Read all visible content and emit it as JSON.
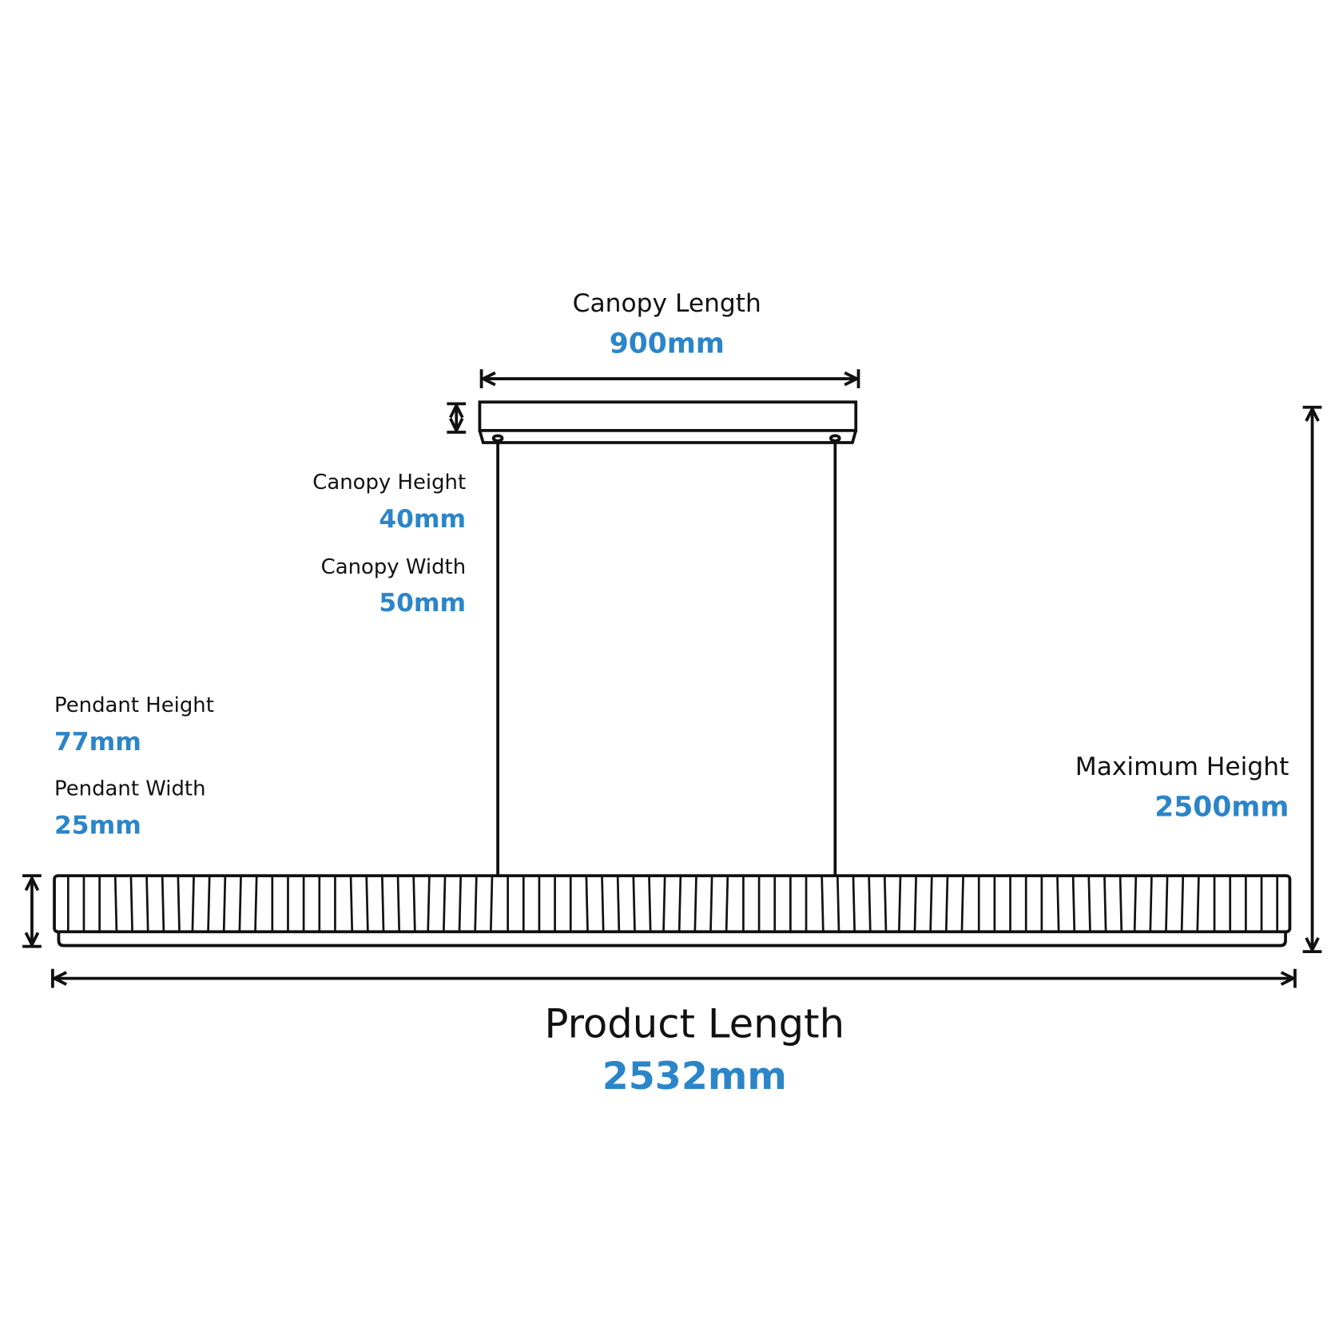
{
  "dimensions": [
    {
      "label": "Canopy Length",
      "value": "900mm"
    },
    {
      "label": "Canopy Height",
      "value": "40mm"
    },
    {
      "label": "Canopy Width",
      "value": "50mm"
    },
    {
      "label": "Pendant Height",
      "value": "77mm"
    },
    {
      "label": "Pendant Width",
      "value": "25mm"
    },
    {
      "label": "Maximum Height",
      "value": "2500mm"
    },
    {
      "label": "Product Length",
      "value": "2532mm"
    }
  ]
}
